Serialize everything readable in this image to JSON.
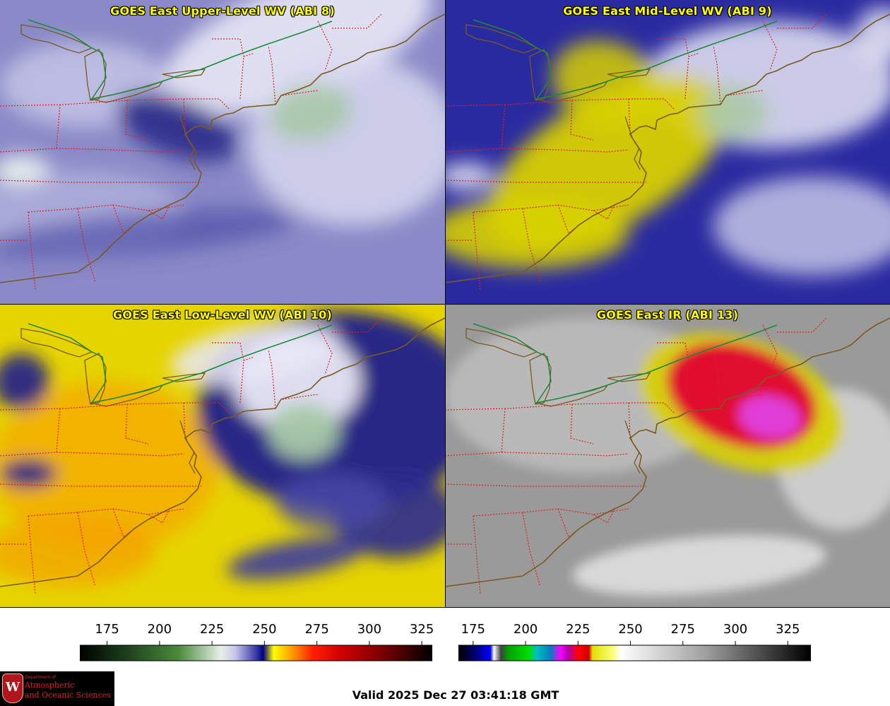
{
  "panels": [
    {
      "id": "upper",
      "title": "GOES East Upper-Level WV (ABI 8)",
      "base_color": "#8a8ac8"
    },
    {
      "id": "mid",
      "title": "GOES East Mid-Level WV (ABI 9)",
      "base_color": "#2a2aa0"
    },
    {
      "id": "low",
      "title": "GOES East Low-Level WV (ABI 10)",
      "base_color": "#e6d400"
    },
    {
      "id": "ir",
      "title": "GOES East IR (ABI 13)",
      "base_color": "#9a9a9a"
    }
  ],
  "colorbar_wv": {
    "ticks": [
      "175",
      "200",
      "225",
      "250",
      "275",
      "300",
      "325"
    ],
    "range": [
      162,
      330
    ],
    "tick_values": [
      175,
      200,
      225,
      250,
      275,
      300,
      325
    ],
    "stops": [
      [
        "0",
        "#000000"
      ],
      [
        "0.12",
        "#1a3a1a"
      ],
      [
        "0.28",
        "#4a8a3a"
      ],
      [
        "0.4",
        "#e8f0e8"
      ],
      [
        "0.44",
        "#c8c8ea"
      ],
      [
        "0.5",
        "#3a3aa8"
      ],
      [
        "0.52",
        "#000080"
      ],
      [
        "0.55",
        "#ffff00"
      ],
      [
        "0.6",
        "#ffa000"
      ],
      [
        "0.66",
        "#ff2000"
      ],
      [
        "0.74",
        "#d00000"
      ],
      [
        "0.85",
        "#800000"
      ],
      [
        "1",
        "#000000"
      ]
    ]
  },
  "colorbar_ir": {
    "ticks": [
      "175",
      "200",
      "225",
      "250",
      "275",
      "300",
      "325"
    ],
    "range": [
      168,
      336
    ],
    "tick_values": [
      175,
      200,
      225,
      250,
      275,
      300,
      325
    ],
    "stops": [
      [
        "0",
        "#000000"
      ],
      [
        "0.04",
        "#000060"
      ],
      [
        "0.09",
        "#0000ff"
      ],
      [
        "0.1",
        "#ffffff"
      ],
      [
        "0.12",
        "#404040"
      ],
      [
        "0.14",
        "#00a000"
      ],
      [
        "0.2",
        "#00e000"
      ],
      [
        "0.22",
        "#00c0c0"
      ],
      [
        "0.26",
        "#0080c0"
      ],
      [
        "0.29",
        "#ff00ff"
      ],
      [
        "0.31",
        "#b000b0"
      ],
      [
        "0.34",
        "#ff0000"
      ],
      [
        "0.37",
        "#d00000"
      ],
      [
        "0.38",
        "#e0e000"
      ],
      [
        "0.44",
        "#ffff80"
      ],
      [
        "0.46",
        "#ffffff"
      ],
      [
        "0.7",
        "#a0a0a0"
      ],
      [
        "1",
        "#000000"
      ]
    ]
  },
  "valid_time": "Valid 2025 Dec 27 03:41:18 GMT",
  "logo": {
    "dept": "Department of",
    "line1": "Atmospheric",
    "line2": "and Oceanic Sciences",
    "seal_letter": "W"
  },
  "colors": {
    "coast": "#7a5a20",
    "state_border": "#e02020",
    "country_border": "#1a8a3a"
  }
}
